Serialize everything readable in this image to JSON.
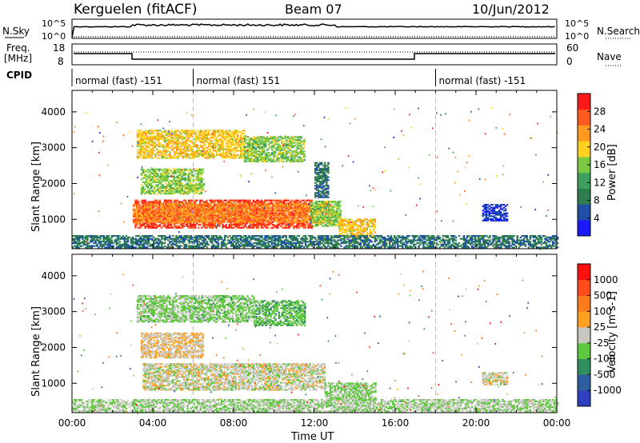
{
  "header": {
    "station": "Kerguelen (fitACF)",
    "beam": "Beam 07",
    "date": "10/Jun/2012"
  },
  "noise_panel": {
    "left_label": "N.Sky",
    "right_label": "N.Search",
    "left_ticks": [
      "10^5",
      "10^0"
    ],
    "right_ticks": [
      "10^5",
      "10^0"
    ]
  },
  "freq_panel": {
    "left_label_1": "Freq.",
    "left_label_2": "[MHz]",
    "right_label": "Nave",
    "left_ticks": [
      "18",
      "8"
    ],
    "right_ticks": [
      "60",
      "0"
    ]
  },
  "cpid": {
    "label": "CPID",
    "segments": [
      {
        "start_h": 0,
        "text": "normal (fast) -151"
      },
      {
        "start_h": 6,
        "text": "normal (fast) 151"
      },
      {
        "start_h": 18,
        "text": "normal (fast) -151"
      }
    ]
  },
  "colors": {
    "power_scale": [
      "#1a1aff",
      "#1f4fa8",
      "#2e7d4f",
      "#3f9f5f",
      "#7ac943",
      "#ffd21f",
      "#ff9a1f",
      "#ff5a1f",
      "#ff1a1a"
    ],
    "velocity_scale": [
      "#3040c0",
      "#2d5fa0",
      "#2f8f5f",
      "#5fc83f",
      "#c8c8c0",
      "#ffa020",
      "#ff7a1a",
      "#ff4a1a",
      "#ff1010"
    ]
  },
  "chart_data": [
    {
      "type": "heatmap",
      "title": "Power",
      "ylabel": "Slant Range [km]",
      "xlabel": "Time UT",
      "x_ticks": [
        "00:00",
        "04:00",
        "08:00",
        "12:00",
        "16:00",
        "20:00",
        "00:00"
      ],
      "y_ticks": [
        "1000",
        "2000",
        "3000",
        "4000"
      ],
      "xlim_hours": [
        0,
        24
      ],
      "ylim_km": [
        180,
        4600
      ],
      "colorbar_label": "Power [dB]",
      "colorbar_ticks": [
        "28",
        "24",
        "20",
        "16",
        "12",
        "8",
        "4"
      ],
      "colorbar_range": [
        0,
        32
      ],
      "regions": [
        {
          "t0": 3.1,
          "t1": 11.9,
          "r0": 750,
          "r1": 1550,
          "value": 28
        },
        {
          "t0": 3.0,
          "t1": 12.8,
          "r0": 900,
          "r1": 1450,
          "value": 24
        },
        {
          "t0": 11.8,
          "t1": 13.3,
          "r0": 800,
          "r1": 1500,
          "value": 16
        },
        {
          "t0": 13.2,
          "t1": 15.0,
          "r0": 500,
          "r1": 1000,
          "value": 20
        },
        {
          "t0": 3.2,
          "t1": 8.5,
          "r0": 2700,
          "r1": 3500,
          "value": 20
        },
        {
          "t0": 8.5,
          "t1": 11.5,
          "r0": 2600,
          "r1": 3300,
          "value": 16
        },
        {
          "t0": 3.4,
          "t1": 6.5,
          "r0": 1700,
          "r1": 2400,
          "value": 16
        },
        {
          "t0": 12.0,
          "t1": 12.7,
          "r0": 1600,
          "r1": 2600,
          "value": 8
        },
        {
          "t0": 0.0,
          "t1": 24.0,
          "r0": 200,
          "r1": 550,
          "value": 8
        },
        {
          "t0": 20.3,
          "t1": 21.5,
          "r0": 950,
          "r1": 1400,
          "value": 4
        }
      ]
    },
    {
      "type": "heatmap",
      "title": "Velocity",
      "ylabel": "Slant Range [km]",
      "xlabel": "Time UT",
      "x_ticks": [
        "00:00",
        "04:00",
        "08:00",
        "12:00",
        "16:00",
        "20:00",
        "00:00"
      ],
      "y_ticks": [
        "1000",
        "2000",
        "3000",
        "4000"
      ],
      "xlim_hours": [
        0,
        24
      ],
      "ylim_km": [
        180,
        4600
      ],
      "colorbar_label": "Velocity [m s-1]",
      "colorbar_ticks": [
        "1000",
        "500",
        "100",
        "25",
        "-25",
        "-100",
        "-500",
        "-1000"
      ],
      "colorbar_range": [
        -1200,
        1200
      ],
      "regions": [
        {
          "t0": 3.5,
          "t1": 12.5,
          "r0": 800,
          "r1": 1550,
          "value": 0
        },
        {
          "t0": 3.2,
          "t1": 9.0,
          "r0": 2700,
          "r1": 3450,
          "value": -200
        },
        {
          "t0": 9.0,
          "t1": 11.5,
          "r0": 2600,
          "r1": 3300,
          "value": -300
        },
        {
          "t0": 3.4,
          "t1": 6.5,
          "r0": 1700,
          "r1": 2400,
          "value": 100
        },
        {
          "t0": 0.0,
          "t1": 24.0,
          "r0": 200,
          "r1": 550,
          "value": -100
        },
        {
          "t0": 12.5,
          "t1": 15.0,
          "r0": 500,
          "r1": 1000,
          "value": -150
        },
        {
          "t0": 20.3,
          "t1": 21.5,
          "r0": 950,
          "r1": 1300,
          "value": 0
        }
      ]
    }
  ]
}
